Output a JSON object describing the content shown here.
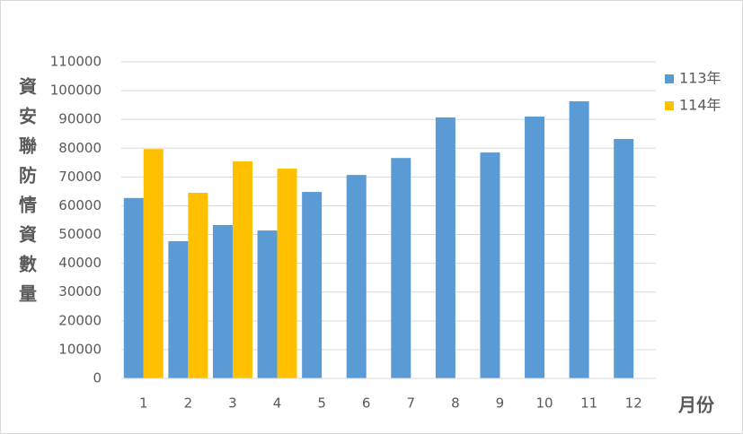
{
  "chart_data": {
    "type": "bar",
    "y_label": "資安聯防情資數量",
    "x_label": "月份",
    "categories": [
      "1",
      "2",
      "3",
      "4",
      "5",
      "6",
      "7",
      "8",
      "9",
      "10",
      "11",
      "12"
    ],
    "series": [
      {
        "name": "113年",
        "color": "#5b9bd5",
        "values": [
          62700,
          47700,
          53300,
          51400,
          64800,
          70700,
          76600,
          90700,
          78500,
          91000,
          96300,
          83200
        ]
      },
      {
        "name": "114年",
        "color": "#ffc000",
        "values": [
          79700,
          64500,
          75400,
          72900,
          null,
          null,
          null,
          null,
          null,
          null,
          null,
          null
        ]
      }
    ],
    "ylim": [
      0,
      110000
    ],
    "yticks": [
      0,
      10000,
      20000,
      30000,
      40000,
      50000,
      60000,
      70000,
      80000,
      90000,
      100000,
      110000
    ],
    "grid": true,
    "legend": "right"
  }
}
